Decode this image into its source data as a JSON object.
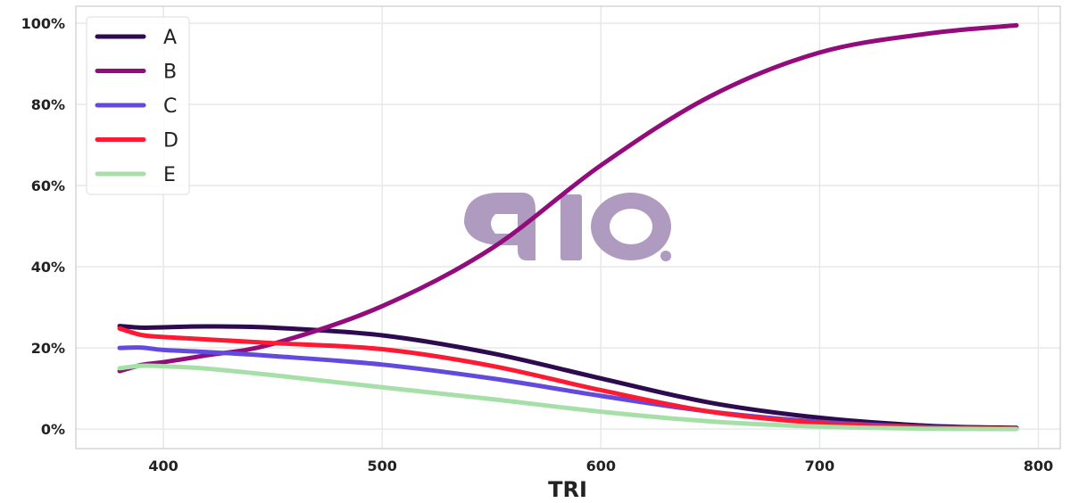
{
  "chart_data": {
    "type": "line",
    "title": "",
    "xlabel": "TRI",
    "ylabel": "",
    "xlim": [
      360,
      810
    ],
    "ylim": [
      -4.8,
      104.2
    ],
    "grid": true,
    "legend_position": "top-left",
    "xticks": [
      400,
      500,
      600,
      700,
      800
    ],
    "xtick_labels": [
      "400",
      "500",
      "600",
      "700",
      "800"
    ],
    "yticks": [
      0,
      20,
      40,
      60,
      80,
      100
    ],
    "ytick_labels": [
      "0%",
      "20%",
      "40%",
      "60%",
      "80%",
      "100%"
    ],
    "watermark": "aio",
    "x": [
      380,
      390,
      400,
      420,
      450,
      500,
      550,
      600,
      650,
      700,
      750,
      790
    ],
    "series": [
      {
        "name": "A",
        "color": "#2e0a4e",
        "values": [
          25.4,
          25.0,
          25.1,
          25.3,
          25.0,
          23.1,
          18.7,
          12.5,
          6.5,
          2.8,
          0.8,
          0.3
        ]
      },
      {
        "name": "B",
        "color": "#920c7c",
        "values": [
          14.3,
          15.8,
          16.5,
          18.2,
          21.0,
          30.3,
          44.5,
          65.0,
          82.0,
          92.8,
          97.5,
          99.5
        ]
      },
      {
        "name": "C",
        "color": "#634ade",
        "values": [
          20.0,
          20.1,
          19.5,
          19.0,
          18.0,
          15.9,
          12.5,
          8.2,
          4.3,
          1.8,
          0.5,
          0.1
        ]
      },
      {
        "name": "D",
        "color": "#fe1a32",
        "values": [
          24.8,
          23.2,
          22.7,
          22.1,
          21.2,
          19.7,
          15.6,
          9.6,
          4.3,
          1.5,
          0.4,
          0.1
        ]
      },
      {
        "name": "E",
        "color": "#a6dfa8",
        "values": [
          15.0,
          15.6,
          15.5,
          14.9,
          13.3,
          10.3,
          7.4,
          4.3,
          1.9,
          0.6,
          0.1,
          0.0
        ]
      }
    ]
  }
}
